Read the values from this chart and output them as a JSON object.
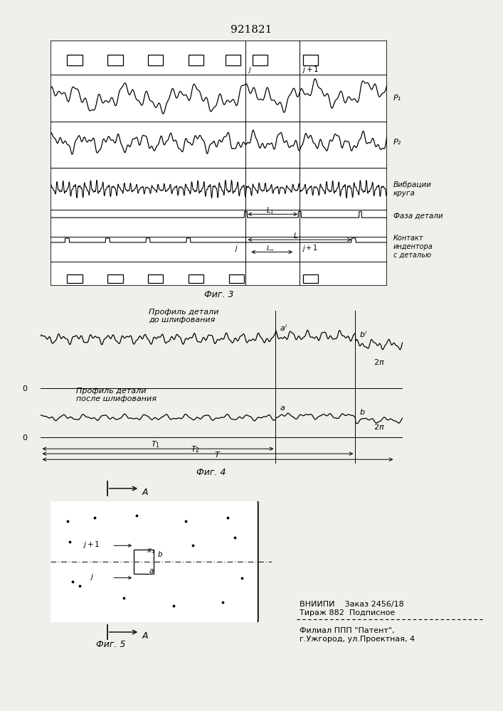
{
  "title": "921821",
  "fig3_label": "Фиг. 3",
  "fig4_label": "Фиг. 4",
  "fig5_label": "Фиг. 5",
  "label_p1": "P₁",
  "label_p2": "P₂",
  "label_vibr": "Вибрации\nкруга",
  "label_faza": "Фаза детали",
  "label_kontakt": "Контакт\nиндентора\nс деталью",
  "label_profile_before": "Профиль детали\nдо шлифования",
  "label_profile_after": "Профиль детали\nпосле шлифования",
  "label_vniip": "ВНИИПИ    Заказ 2456/18\nТираж 882  Подписное",
  "label_filial": "Филиал ППП \"Патент\",\nг.Ужгород, ул.Проектная, 4",
  "bg_color": "#f0f0eb",
  "line_color": "#1a1a1a"
}
